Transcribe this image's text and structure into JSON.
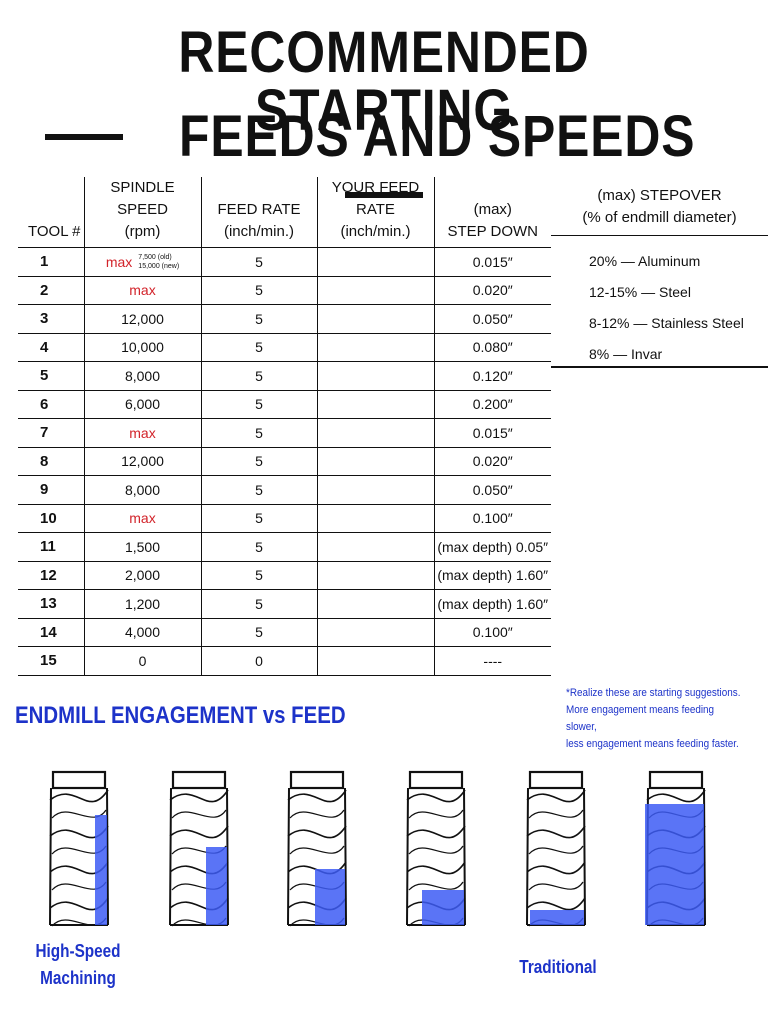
{
  "title": {
    "line1": "RECOMMENDED STARTING",
    "line2": "FEEDS AND SPEEDS"
  },
  "table": {
    "headers": {
      "tool": "TOOL #",
      "spindle_line1": "SPINDLE SPEED",
      "spindle_line2": "(rpm)",
      "feed_line1": "FEED RATE",
      "feed_line2": "(inch/min.)",
      "your_line1": "YOUR FEED RATE",
      "your_line2": "(inch/min.)",
      "step_line1": "(max)",
      "step_line2": "STEP DOWN"
    },
    "rows": [
      {
        "tool": "1",
        "spindle": "max",
        "spindle_note1": "7,500 (old)",
        "spindle_note2": "15,000 (new)",
        "feed": "5",
        "your": "",
        "step": "0.015″"
      },
      {
        "tool": "2",
        "spindle": "max",
        "feed": "5",
        "your": "",
        "step": "0.020″"
      },
      {
        "tool": "3",
        "spindle": "12,000",
        "feed": "5",
        "your": "",
        "step": "0.050″"
      },
      {
        "tool": "4",
        "spindle": "10,000",
        "feed": "5",
        "your": "",
        "step": "0.080″"
      },
      {
        "tool": "5",
        "spindle": "8,000",
        "feed": "5",
        "your": "",
        "step": "0.120″"
      },
      {
        "tool": "6",
        "spindle": "6,000",
        "feed": "5",
        "your": "",
        "step": "0.200″"
      },
      {
        "tool": "7",
        "spindle": "max",
        "feed": "5",
        "your": "",
        "step": "0.015″"
      },
      {
        "tool": "8",
        "spindle": "12,000",
        "feed": "5",
        "your": "",
        "step": "0.020″"
      },
      {
        "tool": "9",
        "spindle": "8,000",
        "feed": "5",
        "your": "",
        "step": "0.050″"
      },
      {
        "tool": "10",
        "spindle": "max",
        "feed": "5",
        "your": "",
        "step": "0.100″"
      },
      {
        "tool": "11",
        "spindle": "1,500",
        "feed": "5",
        "your": "",
        "step": "(max depth) 0.05″"
      },
      {
        "tool": "12",
        "spindle": "2,000",
        "feed": "5",
        "your": "",
        "step": "(max depth) 1.60″"
      },
      {
        "tool": "13",
        "spindle": "1,200",
        "feed": "5",
        "your": "",
        "step": "(max depth) 1.60″"
      },
      {
        "tool": "14",
        "spindle": "4,000",
        "feed": "5",
        "your": "",
        "step": "0.100″"
      },
      {
        "tool": "15",
        "spindle": "0",
        "feed": "0",
        "your": "",
        "step": "----"
      }
    ]
  },
  "stepover": {
    "header_line1": "(max) STEPOVER",
    "header_line2": "(% of endmill diameter)",
    "items": [
      "20% — Aluminum",
      "12-15% — Steel",
      "8-12% — Stainless Steel",
      "8% — Invar"
    ]
  },
  "engagement": {
    "title": "ENDMILL ENGAGEMENT vs FEED",
    "note_line1": "*Realize these are starting suggestions.",
    "note_line2": "More engagement means feeding slower,",
    "note_line3": "less engagement means feeding faster.",
    "label_left_line1": "High-Speed",
    "label_left_line2": "Machining",
    "label_right": "Traditional",
    "highlight_color": "#3d5cf5",
    "text_color": "#1d33c9",
    "max_color": "#d2232a"
  }
}
